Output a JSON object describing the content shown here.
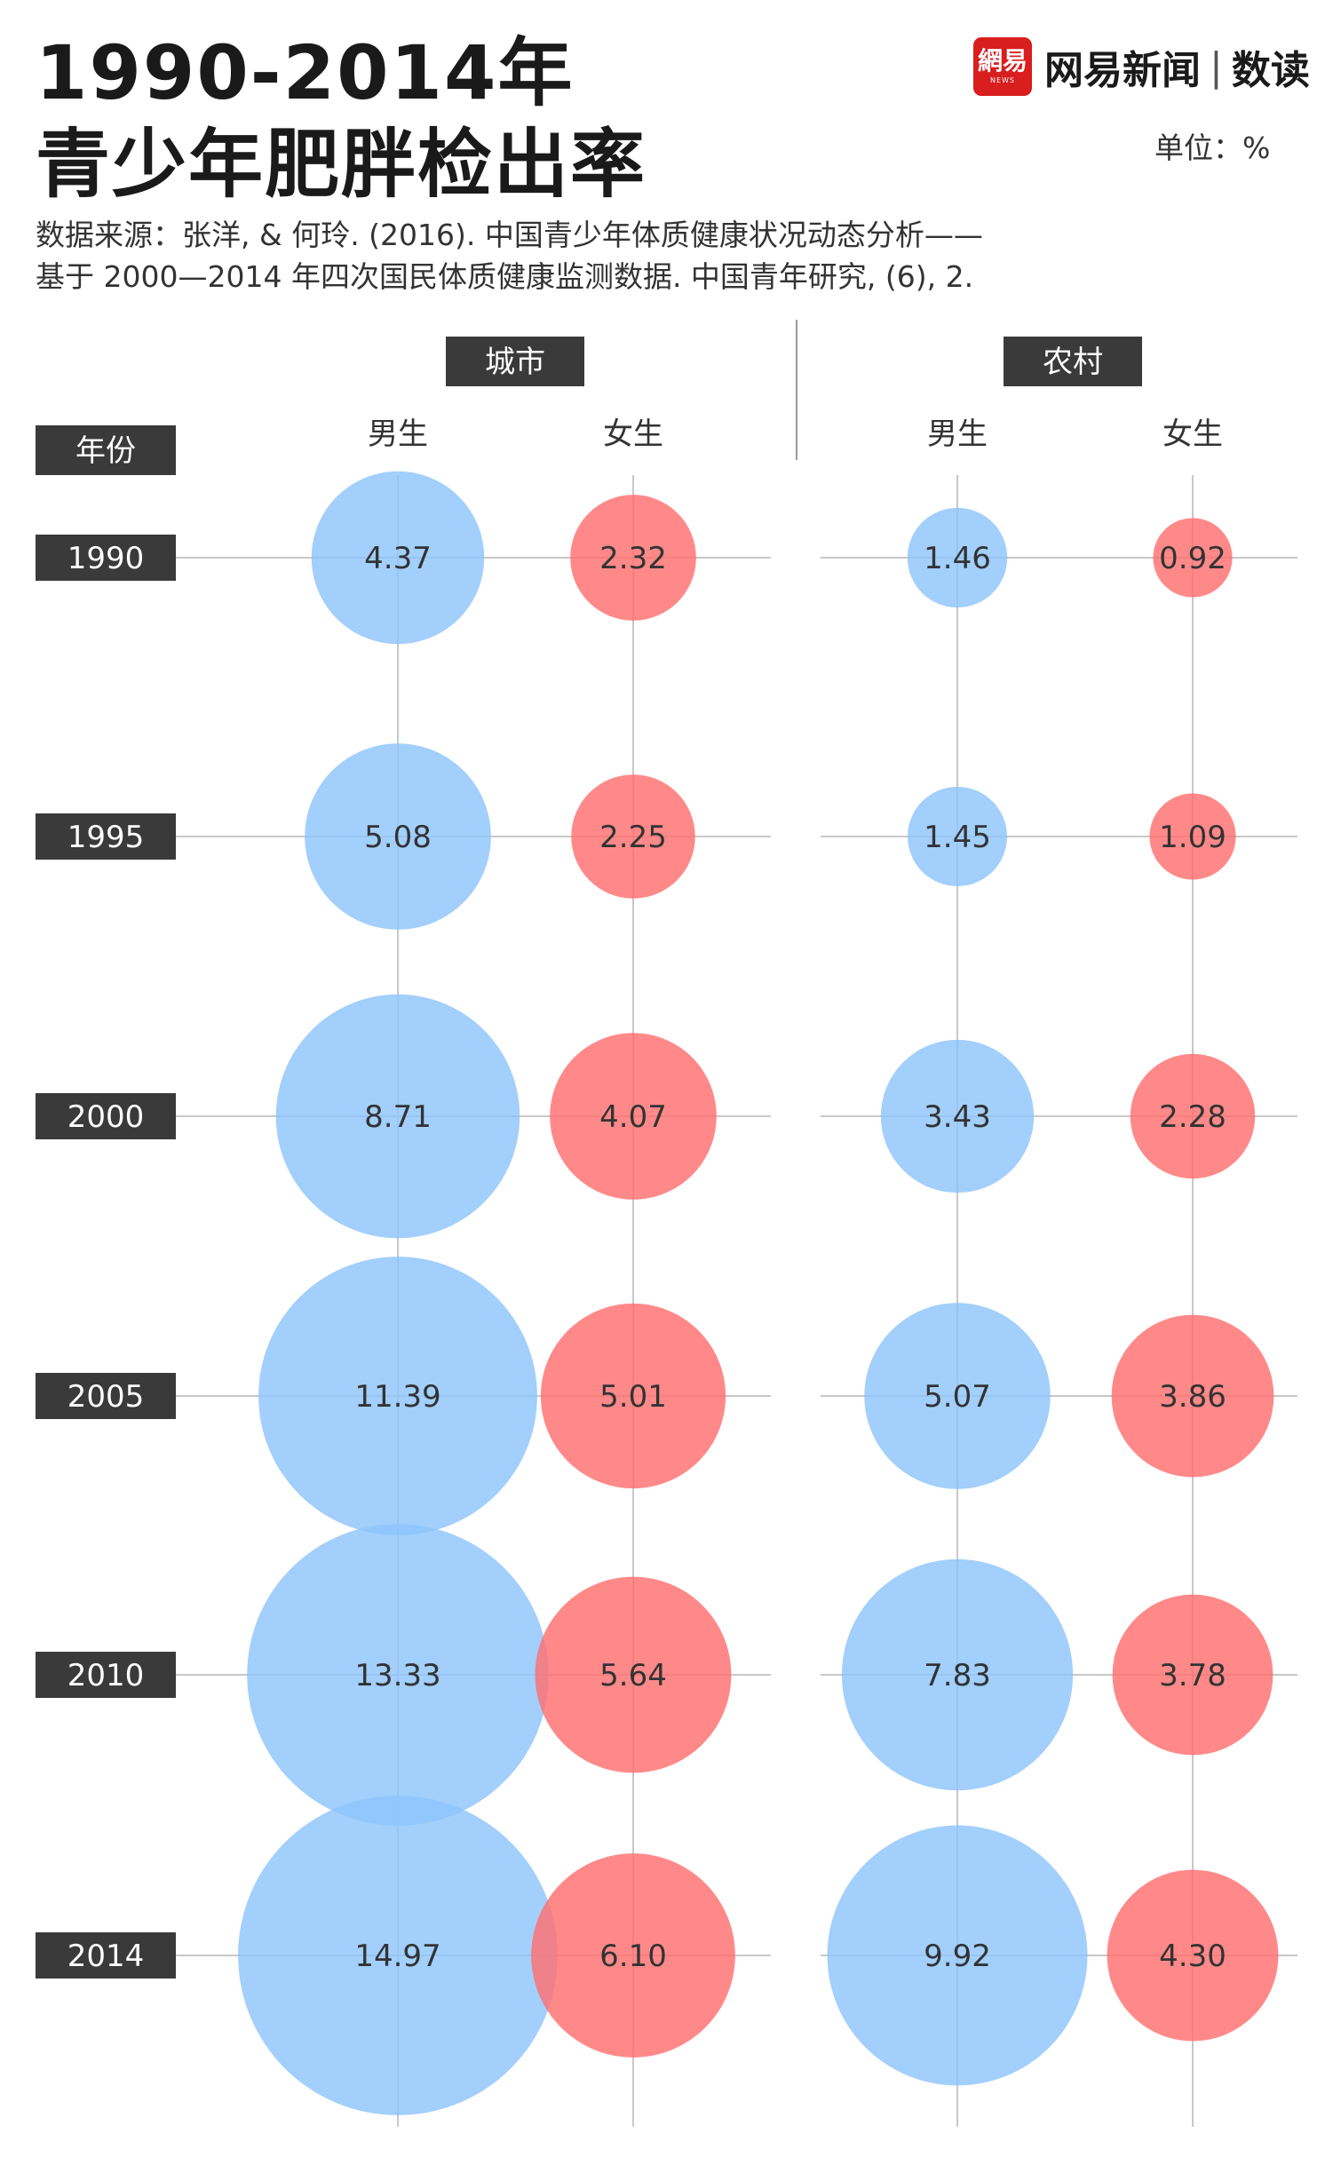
{
  "header": {
    "title_line1": "1990-2014年",
    "title_line2": "青少年肥胖检出率",
    "source_line1": "数据来源：张洋, & 何玲. (2016). 中国青少年体质健康状况动态分析——",
    "source_line2": "基于 2000—2014 年四次国民体质健康监测数据. 中国青年研究, (6), 2.",
    "unit": "单位：%"
  },
  "brand": {
    "logo_text": "網易",
    "logo_subtext": "NEWS",
    "name": "网易新闻",
    "separator": "|",
    "sub": "数读"
  },
  "colors": {
    "boy": "#8ec5fb",
    "girl": "#ff6f6f",
    "label_bg": "#3a3a3a",
    "label_text": "#ffffff",
    "grid": "#c8c8c8",
    "value_text": "#333333"
  },
  "chart_data": {
    "type": "bubble",
    "title": "1990-2014年青少年肥胖检出率",
    "unit": "%",
    "year_header": "年份",
    "groups": [
      {
        "name": "城市",
        "series": [
          {
            "name": "男生",
            "color_key": "boy"
          },
          {
            "name": "女生",
            "color_key": "girl"
          }
        ]
      },
      {
        "name": "农村",
        "series": [
          {
            "name": "男生",
            "color_key": "boy"
          },
          {
            "name": "女生",
            "color_key": "girl"
          }
        ]
      }
    ],
    "years": [
      "1990",
      "1995",
      "2000",
      "2005",
      "2010",
      "2014"
    ],
    "values": {
      "城市-男生": [
        4.37,
        5.08,
        8.71,
        11.39,
        13.33,
        14.97
      ],
      "城市-女生": [
        2.32,
        2.25,
        4.07,
        5.01,
        5.64,
        6.1
      ],
      "农村-男生": [
        1.46,
        1.45,
        3.43,
        5.07,
        7.83,
        9.92
      ],
      "农村-女生": [
        0.92,
        1.09,
        2.28,
        3.86,
        3.78,
        4.3
      ]
    },
    "value_labels": {
      "城市-男生": [
        "4.37",
        "5.08",
        "8.71",
        "11.39",
        "13.33",
        "14.97"
      ],
      "城市-女生": [
        "2.32",
        "2.25",
        "4.07",
        "5.01",
        "5.64",
        "6.10"
      ],
      "农村-男生": [
        "1.46",
        "1.45",
        "3.43",
        "5.07",
        "7.83",
        "9.92"
      ],
      "农村-女生": [
        "0.92",
        "1.09",
        "2.28",
        "3.86",
        "3.78",
        "4.30"
      ]
    }
  }
}
